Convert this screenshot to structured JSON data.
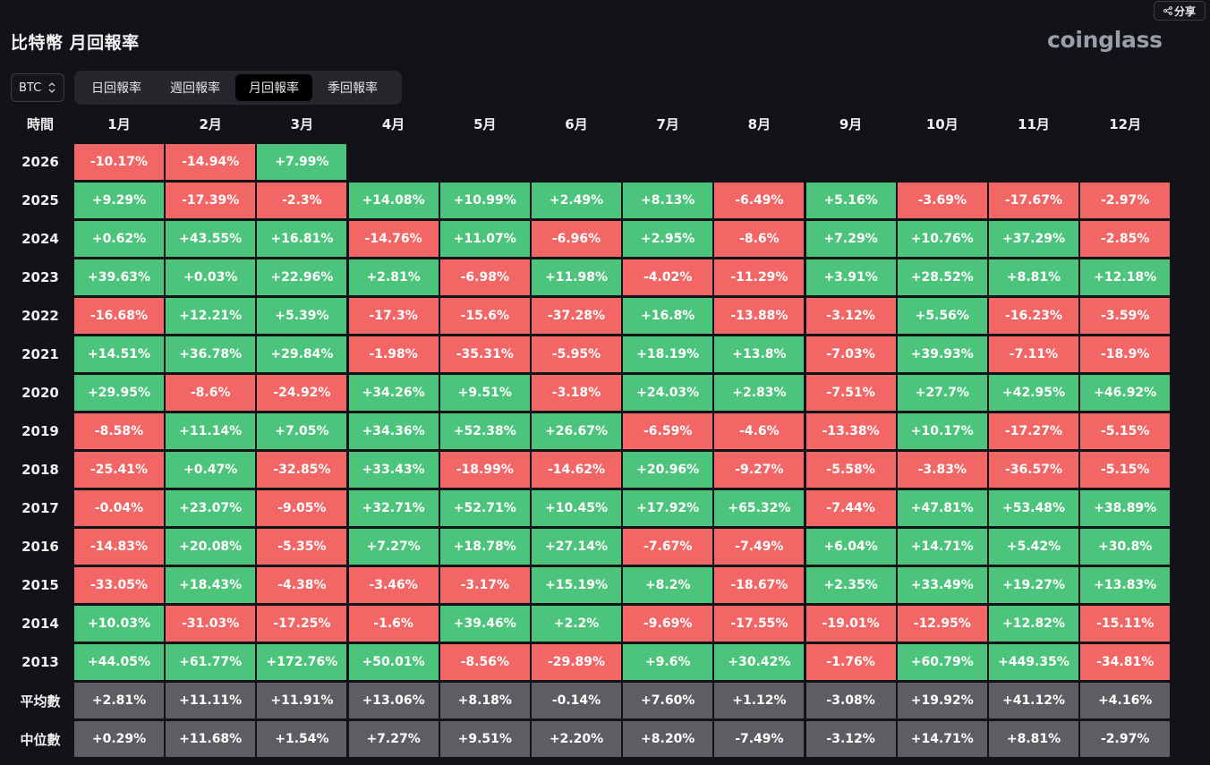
{
  "share": {
    "label": "分享",
    "icon": "share-icon"
  },
  "title": "比特幣 月回報率",
  "brand": "coinglass",
  "coin_select": {
    "value": "BTC",
    "icon": "chevron-updown-icon"
  },
  "tabs": [
    {
      "label": "日回報率",
      "active": false
    },
    {
      "label": "週回報率",
      "active": false
    },
    {
      "label": "月回報率",
      "active": true
    },
    {
      "label": "季回報率",
      "active": false
    }
  ],
  "colors": {
    "positive": "#4cc47c",
    "negative": "#f26666",
    "stat": "#5d5e61",
    "background": "#111318"
  },
  "table": {
    "corner": "時間",
    "columns": [
      "1月",
      "2月",
      "3月",
      "4月",
      "5月",
      "6月",
      "7月",
      "8月",
      "9月",
      "10月",
      "11月",
      "12月"
    ],
    "rows": [
      {
        "year": "2026",
        "values": [
          "-10.17%",
          "-14.94%",
          "+7.99%"
        ]
      },
      {
        "year": "2025",
        "values": [
          "+9.29%",
          "-17.39%",
          "-2.3%",
          "+14.08%",
          "+10.99%",
          "+2.49%",
          "+8.13%",
          "-6.49%",
          "+5.16%",
          "-3.69%",
          "-17.67%",
          "-2.97%"
        ]
      },
      {
        "year": "2024",
        "values": [
          "+0.62%",
          "+43.55%",
          "+16.81%",
          "-14.76%",
          "+11.07%",
          "-6.96%",
          "+2.95%",
          "-8.6%",
          "+7.29%",
          "+10.76%",
          "+37.29%",
          "-2.85%"
        ]
      },
      {
        "year": "2023",
        "values": [
          "+39.63%",
          "+0.03%",
          "+22.96%",
          "+2.81%",
          "-6.98%",
          "+11.98%",
          "-4.02%",
          "-11.29%",
          "+3.91%",
          "+28.52%",
          "+8.81%",
          "+12.18%"
        ]
      },
      {
        "year": "2022",
        "values": [
          "-16.68%",
          "+12.21%",
          "+5.39%",
          "-17.3%",
          "-15.6%",
          "-37.28%",
          "+16.8%",
          "-13.88%",
          "-3.12%",
          "+5.56%",
          "-16.23%",
          "-3.59%"
        ]
      },
      {
        "year": "2021",
        "values": [
          "+14.51%",
          "+36.78%",
          "+29.84%",
          "-1.98%",
          "-35.31%",
          "-5.95%",
          "+18.19%",
          "+13.8%",
          "-7.03%",
          "+39.93%",
          "-7.11%",
          "-18.9%"
        ]
      },
      {
        "year": "2020",
        "values": [
          "+29.95%",
          "-8.6%",
          "-24.92%",
          "+34.26%",
          "+9.51%",
          "-3.18%",
          "+24.03%",
          "+2.83%",
          "-7.51%",
          "+27.7%",
          "+42.95%",
          "+46.92%"
        ]
      },
      {
        "year": "2019",
        "values": [
          "-8.58%",
          "+11.14%",
          "+7.05%",
          "+34.36%",
          "+52.38%",
          "+26.67%",
          "-6.59%",
          "-4.6%",
          "-13.38%",
          "+10.17%",
          "-17.27%",
          "-5.15%"
        ]
      },
      {
        "year": "2018",
        "values": [
          "-25.41%",
          "+0.47%",
          "-32.85%",
          "+33.43%",
          "-18.99%",
          "-14.62%",
          "+20.96%",
          "-9.27%",
          "-5.58%",
          "-3.83%",
          "-36.57%",
          "-5.15%"
        ]
      },
      {
        "year": "2017",
        "values": [
          "-0.04%",
          "+23.07%",
          "-9.05%",
          "+32.71%",
          "+52.71%",
          "+10.45%",
          "+17.92%",
          "+65.32%",
          "-7.44%",
          "+47.81%",
          "+53.48%",
          "+38.89%"
        ]
      },
      {
        "year": "2016",
        "values": [
          "-14.83%",
          "+20.08%",
          "-5.35%",
          "+7.27%",
          "+18.78%",
          "+27.14%",
          "-7.67%",
          "-7.49%",
          "+6.04%",
          "+14.71%",
          "+5.42%",
          "+30.8%"
        ]
      },
      {
        "year": "2015",
        "values": [
          "-33.05%",
          "+18.43%",
          "-4.38%",
          "-3.46%",
          "-3.17%",
          "+15.19%",
          "+8.2%",
          "-18.67%",
          "+2.35%",
          "+33.49%",
          "+19.27%",
          "+13.83%"
        ]
      },
      {
        "year": "2014",
        "values": [
          "+10.03%",
          "-31.03%",
          "-17.25%",
          "-1.6%",
          "+39.46%",
          "+2.2%",
          "-9.69%",
          "-17.55%",
          "-19.01%",
          "-12.95%",
          "+12.82%",
          "-15.11%"
        ]
      },
      {
        "year": "2013",
        "values": [
          "+44.05%",
          "+61.77%",
          "+172.76%",
          "+50.01%",
          "-8.56%",
          "-29.89%",
          "+9.6%",
          "+30.42%",
          "-1.76%",
          "+60.79%",
          "+449.35%",
          "-34.81%"
        ]
      }
    ],
    "stats": [
      {
        "label": "平均數",
        "values": [
          "+2.81%",
          "+11.11%",
          "+11.91%",
          "+13.06%",
          "+8.18%",
          "-0.14%",
          "+7.60%",
          "+1.12%",
          "-3.08%",
          "+19.92%",
          "+41.12%",
          "+4.16%"
        ]
      },
      {
        "label": "中位數",
        "values": [
          "+0.29%",
          "+11.68%",
          "+1.54%",
          "+7.27%",
          "+9.51%",
          "+2.20%",
          "+8.20%",
          "-7.49%",
          "-3.12%",
          "+14.71%",
          "+8.81%",
          "-2.97%"
        ]
      }
    ]
  }
}
